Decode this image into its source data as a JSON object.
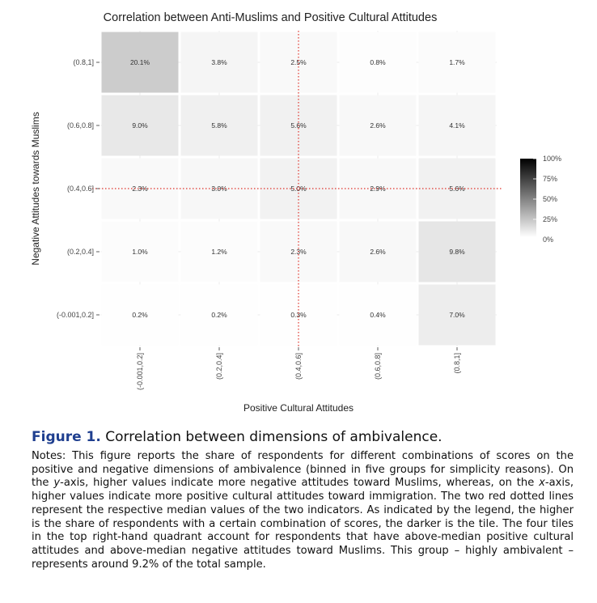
{
  "chart_data": {
    "type": "heatmap",
    "title": "Correlation between Anti-Muslims and Positive Cultural Attitudes",
    "xlabel": "Positive Cultural Attitudes",
    "ylabel": "Negative Attitudes towards Muslims",
    "x_categories": [
      "(-0.001,0.2]",
      "(0.2,0.4]",
      "(0.4,0.6]",
      "(0.6,0.8]",
      "(0.8,1]"
    ],
    "y_categories": [
      "(0.8,1]",
      "(0.6,0.8]",
      "(0.4,0.6]",
      "(0.2,0.4]",
      "(-0.001,0.2]"
    ],
    "values": [
      [
        20.1,
        3.8,
        2.5,
        0.8,
        1.7
      ],
      [
        9.0,
        5.8,
        5.6,
        2.6,
        4.1
      ],
      [
        2.3,
        3.0,
        5.0,
        2.9,
        5.6
      ],
      [
        1.0,
        1.2,
        2.3,
        2.6,
        9.8
      ],
      [
        0.2,
        0.2,
        0.3,
        0.4,
        7.0
      ]
    ],
    "cell_labels": [
      [
        "20.1%",
        "3.8%",
        "2.5%",
        "0.8%",
        "1.7%"
      ],
      [
        "9.0%",
        "5.8%",
        "5.6%",
        "2.6%",
        "4.1%"
      ],
      [
        "2.3%",
        "3.0%",
        "5.0%",
        "2.9%",
        "5.6%"
      ],
      [
        "1.0%",
        "1.2%",
        "2.3%",
        "2.6%",
        "9.8%"
      ],
      [
        "0.2%",
        "0.2%",
        "0.3%",
        "0.4%",
        "7.0%"
      ]
    ],
    "legend": {
      "labels": [
        "100%",
        "75%",
        "50%",
        "25%",
        "0%"
      ],
      "placement": "right",
      "low_color": "#ffffff",
      "high_color": "#000000"
    },
    "median_lines": {
      "vertical_between": [
        "(0.4,0.6]"
      ],
      "horizontal_at": [
        "(0.4,0.6]"
      ],
      "color": "#e0332b",
      "style": "dotted"
    },
    "grid": true
  },
  "caption": {
    "figure_label": "Figure 1.",
    "figure_title": "Correlation between dimensions of ambivalence.",
    "notes_segments": [
      "Notes: This figure reports the share of respondents for different combinations of scores on the positive and negative dimensions of ambivalence (binned in five groups for simplicity reasons). On the ",
      "y",
      "-axis, higher values indicate more negative attitudes toward Muslims, whereas, on the ",
      "x",
      "-axis, higher values indicate more positive cultural attitudes toward immigration. The two red dotted lines represent the respective median values of the two indicators. As indicated by the legend, the higher is the share of respondents with a certain combination of scores, the darker is the tile. The four tiles in the top right-hand quadrant account for respondents that have above-median positive cultural attitudes and above-median negative attitudes toward Muslims. This group – highly ambivalent – represents around 9.2% of the total sample."
    ]
  }
}
